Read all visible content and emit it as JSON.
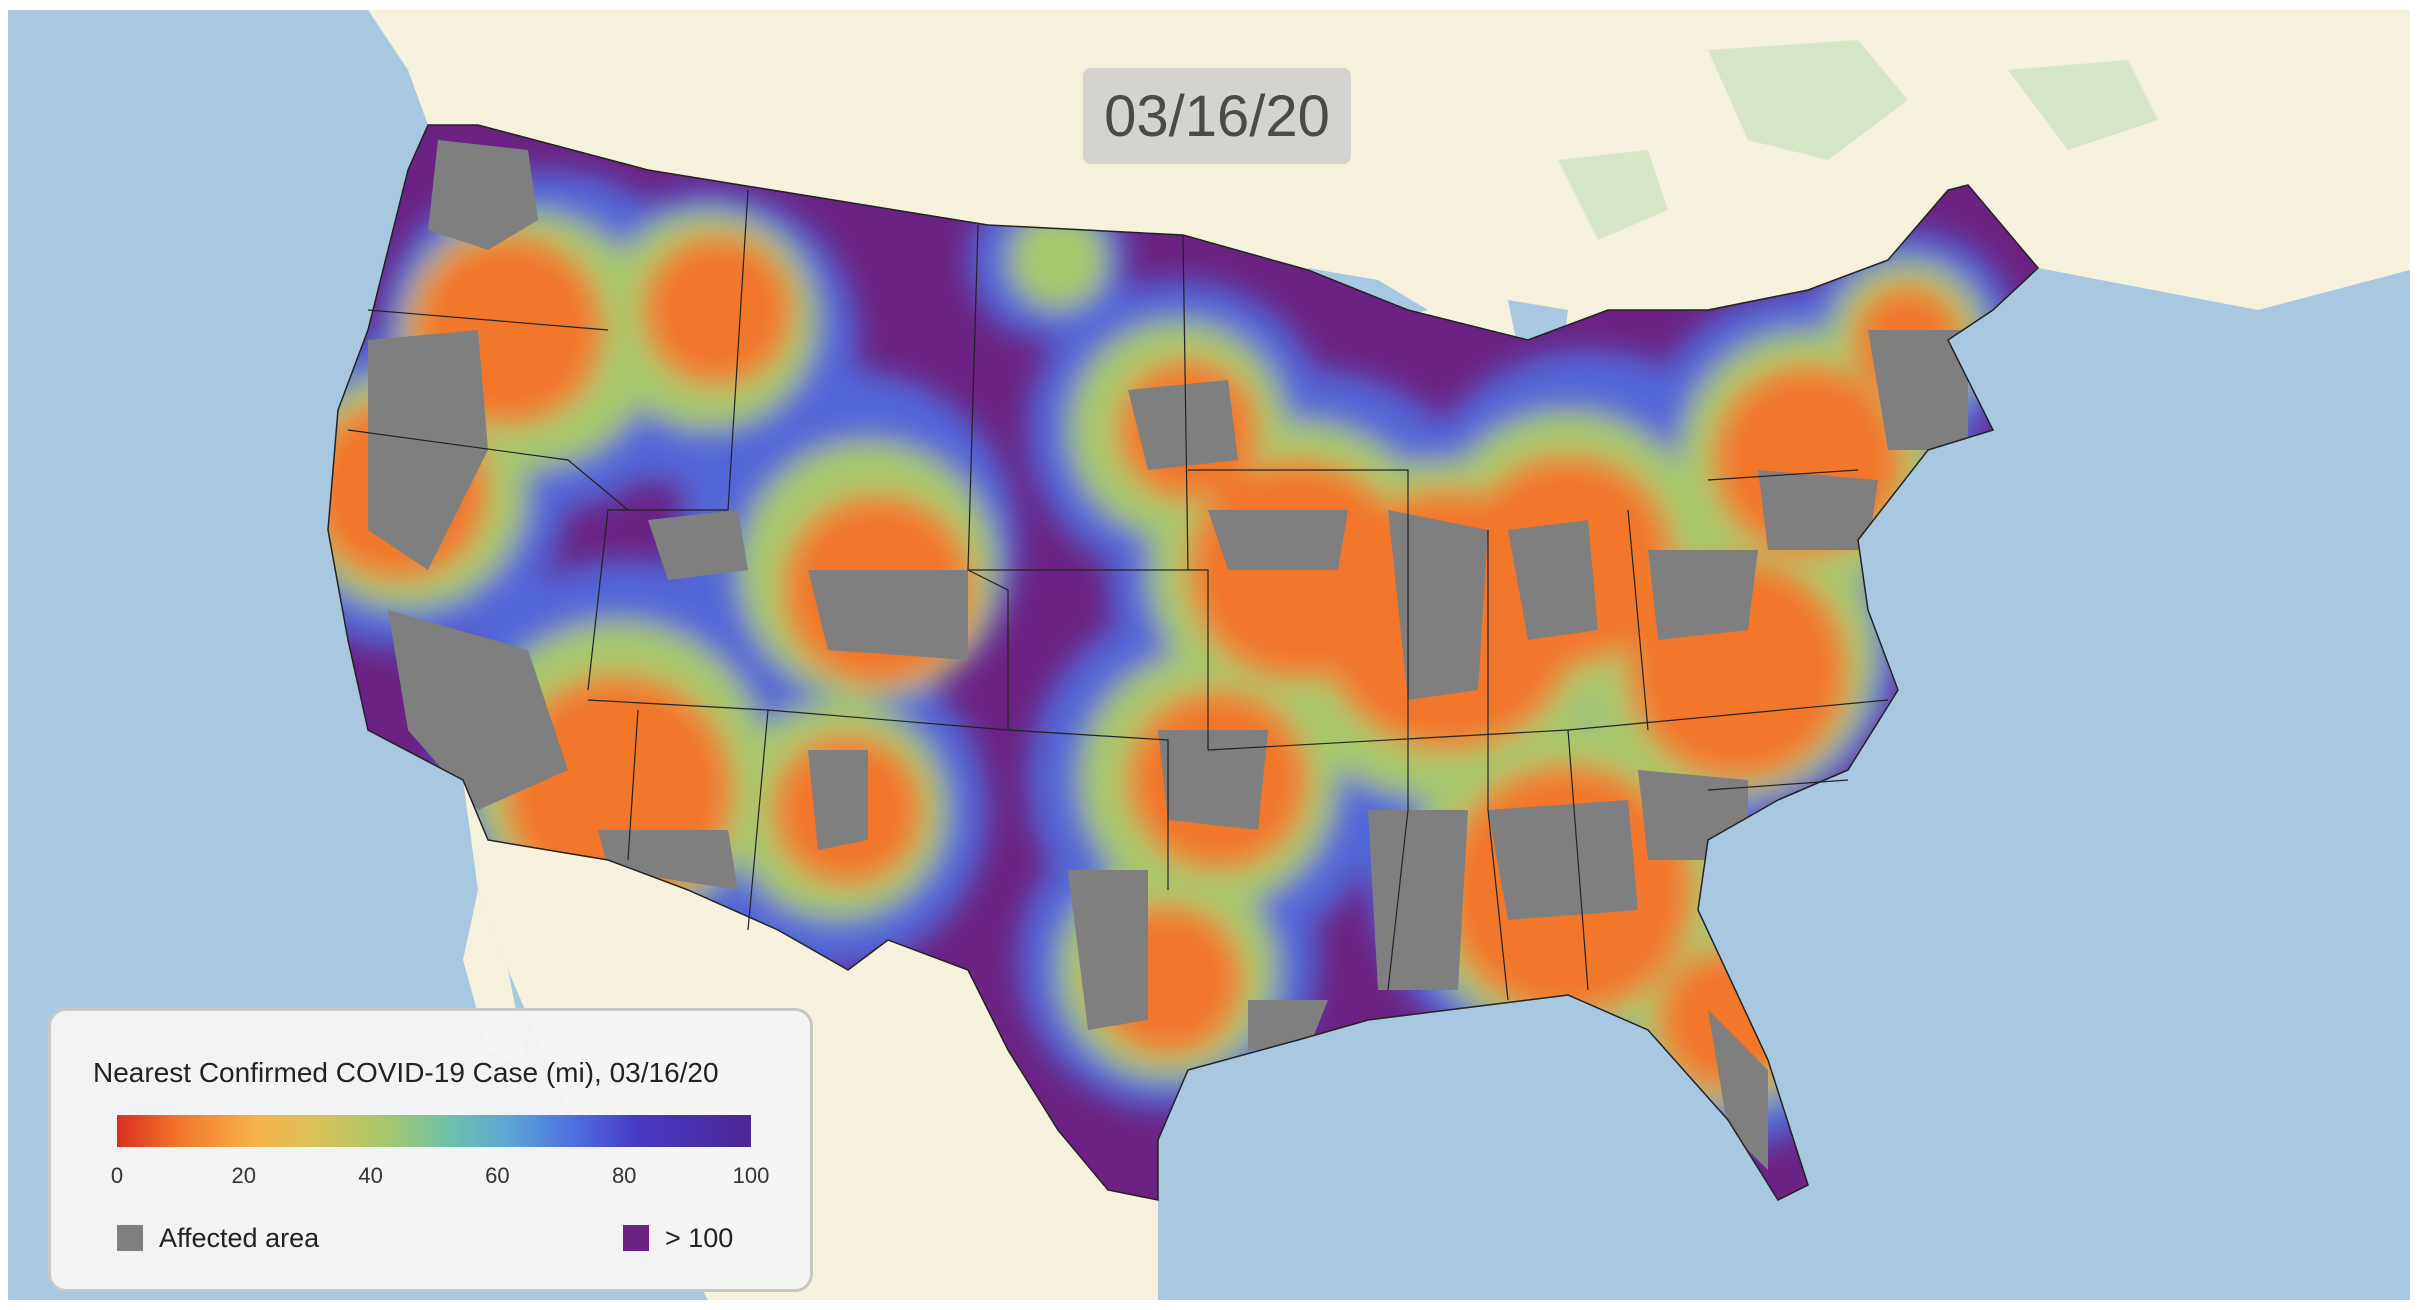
{
  "date_badge": "03/16/20",
  "legend": {
    "title": "Nearest Confirmed COVID-19 Case (mi), 03/16/20",
    "ticks": [
      "0",
      "20",
      "40",
      "60",
      "80",
      "100"
    ],
    "affected_label": "Affected area",
    "over_label": "> 100",
    "colors": {
      "affected": "#7f7f7f",
      "over": "#6b2283",
      "gradient": [
        "#d7301f",
        "#f2772b",
        "#f7b44a",
        "#d9c25a",
        "#a8c76a",
        "#6fc3a8",
        "#5aa5d5",
        "#4f6fe0",
        "#4839c6",
        "#4a2792"
      ]
    }
  },
  "map": {
    "water_color": "#a8c8e2",
    "land_color": "#f5f1dc"
  }
}
